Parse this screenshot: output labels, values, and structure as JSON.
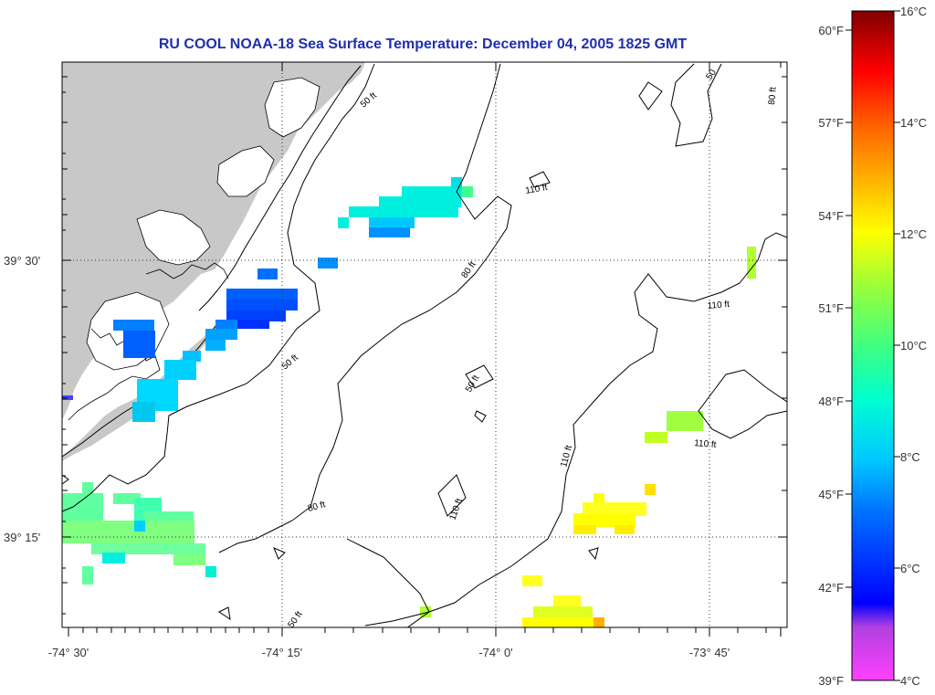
{
  "title": "RU COOL  NOAA-18  Sea Surface Temperature:  December 04, 2005 1825 GMT",
  "axes": {
    "lat_labels": [
      "39° 30'",
      "39° 15'"
    ],
    "lon_labels": [
      "-74° 30'",
      "-74° 15'",
      "-74° 0'",
      "-73° 45'"
    ]
  },
  "contour_labels": [
    "50 ft",
    "50 ft",
    "80 ft",
    "50 ft",
    "80 ft",
    "110 ft",
    "110 ft",
    "110 ft",
    "110 ft",
    "110 ft",
    "50 ft",
    "80 ft",
    "50"
  ],
  "colorbar": {
    "celsius_labels": [
      "16°C",
      "14°C",
      "12°C",
      "10°C",
      "8°C",
      "6°C",
      "4°C"
    ],
    "fahrenheit_labels": [
      "60°F",
      "57°F",
      "54°F",
      "51°F",
      "48°F",
      "45°F",
      "42°F",
      "39°F"
    ]
  },
  "colors": {
    "land": "#c8c8c8",
    "title": "#1f2fb0",
    "grid": "#333333"
  }
}
